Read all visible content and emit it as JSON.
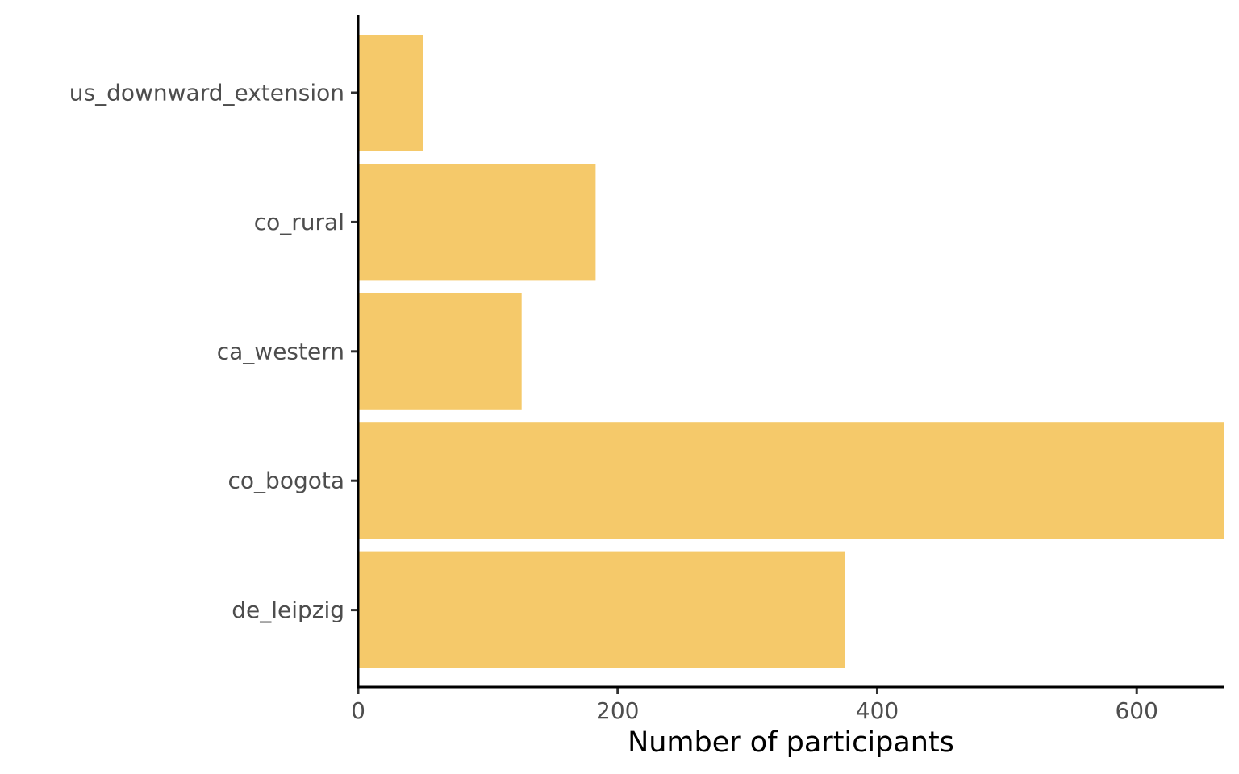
{
  "chart_data": {
    "type": "bar",
    "orientation": "horizontal",
    "categories": [
      "us_downward_extension",
      "co_rural",
      "ca_western",
      "co_bogota",
      "de_leipzig"
    ],
    "values": [
      50,
      183,
      126,
      670,
      375
    ],
    "xlabel": "Number of participants",
    "ylabel": "",
    "xlim": [
      0,
      667
    ],
    "xticks": [
      0,
      200,
      400,
      600
    ],
    "xtick_labels": [
      "0",
      "200",
      "400",
      "600"
    ],
    "grid": false,
    "legend": "none",
    "bar_color": "#F5C96A"
  }
}
